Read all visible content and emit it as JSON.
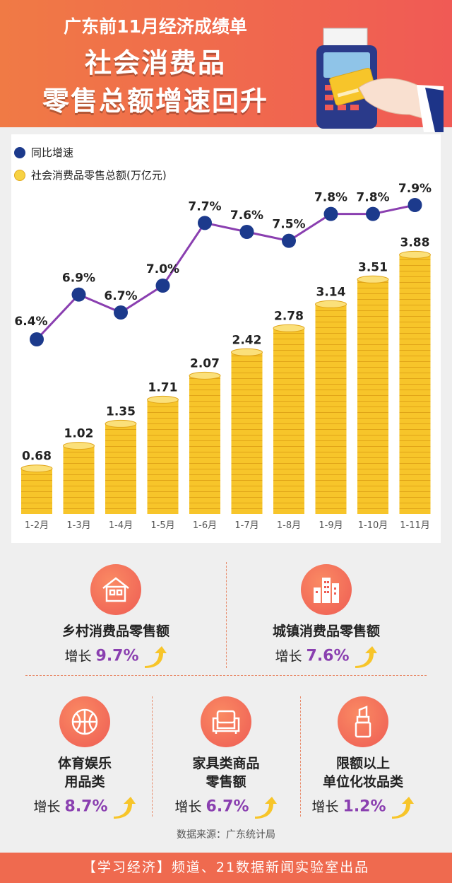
{
  "header": {
    "subtitle": "广东前11月经济成绩单",
    "title_line1": "社会消费品",
    "title_line2": "零售总额增速回升"
  },
  "legend": {
    "growth": "同比增速",
    "total": "社会消费品零售总额(万亿元)"
  },
  "colors": {
    "header_start": "#f07a45",
    "header_end": "#f05a55",
    "gold": "#f7c52a",
    "line": "#8a3fb0",
    "dot": "#1c3a8c",
    "accent_text": "#8a3fb0"
  },
  "chart_data": {
    "type": "bar+line",
    "categories": [
      "1-2月",
      "1-3月",
      "1-4月",
      "1-5月",
      "1-6月",
      "1-7月",
      "1-8月",
      "1-9月",
      "1-10月",
      "1-11月"
    ],
    "series": [
      {
        "name": "社会消费品零售总额(万亿元)",
        "type": "bar",
        "values": [
          0.68,
          1.02,
          1.35,
          1.71,
          2.07,
          2.42,
          2.78,
          3.14,
          3.51,
          3.88
        ]
      },
      {
        "name": "同比增速",
        "type": "line",
        "values": [
          6.4,
          6.9,
          6.7,
          7.0,
          7.7,
          7.6,
          7.5,
          7.8,
          7.8,
          7.9
        ],
        "labels": [
          "6.4%",
          "6.9%",
          "6.7%",
          "7.0%",
          "7.7%",
          "7.6%",
          "7.5%",
          "7.8%",
          "7.8%",
          "7.9%"
        ]
      }
    ],
    "ylim_bar": [
      0,
      4
    ],
    "ylim_line": [
      6,
      8.2
    ],
    "grid": false,
    "legend_position": "top-left"
  },
  "categories": [
    {
      "name": "乡村消费品零售额",
      "growth_label": "增长",
      "growth": "9.7%",
      "icon": "house-icon"
    },
    {
      "name": "城镇消费品零售额",
      "growth_label": "增长",
      "growth": "7.6%",
      "icon": "city-buildings-icon"
    },
    {
      "name_line1": "体育娱乐",
      "name_line2": "用品类",
      "growth_label": "增长",
      "growth": "8.7%",
      "icon": "basketball-icon"
    },
    {
      "name_line1": "家具类商品",
      "name_line2": "零售额",
      "growth_label": "增长",
      "growth": "6.7%",
      "icon": "sofa-icon"
    },
    {
      "name_line1": "限额以上",
      "name_line2": "单位化妆品类",
      "growth_label": "增长",
      "growth": "1.2%",
      "icon": "lipstick-icon"
    }
  ],
  "source": "数据来源：广东统计局",
  "footer": "【学习经济】频道、21数据新闻实验室出品"
}
